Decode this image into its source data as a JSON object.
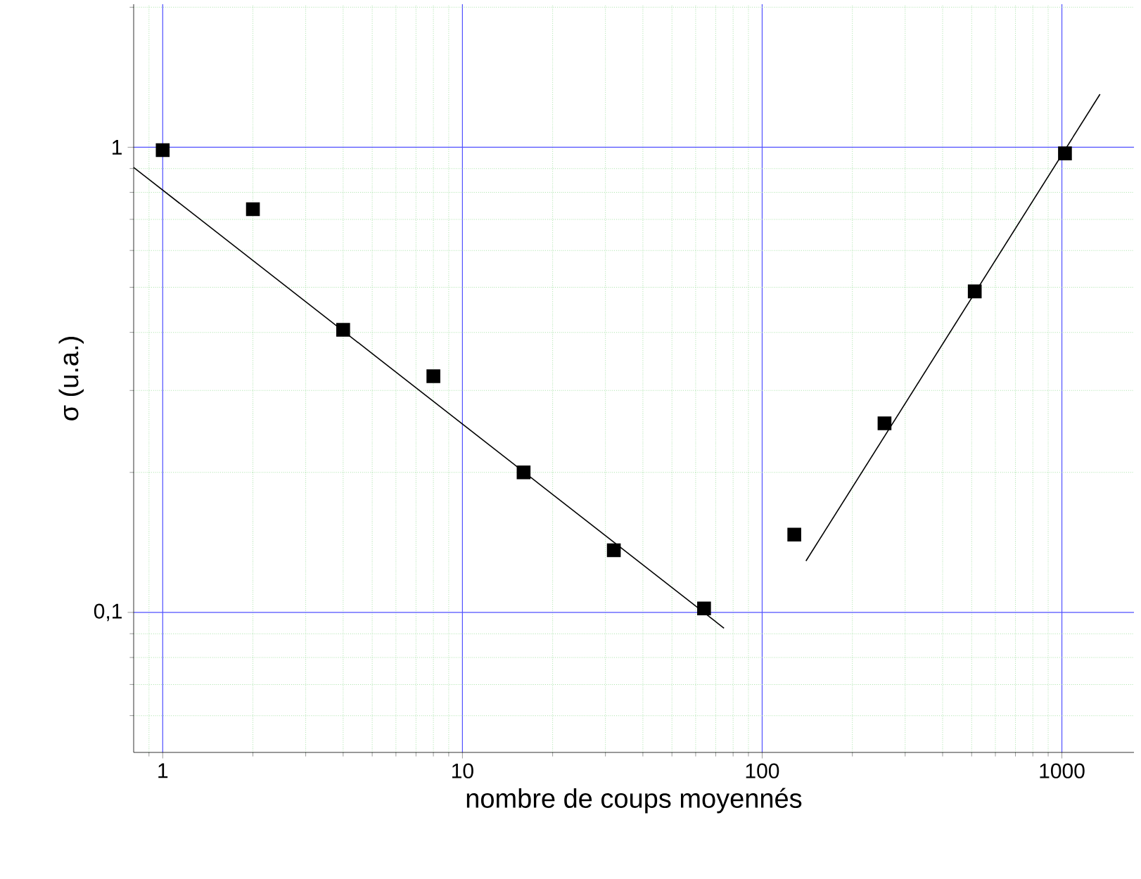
{
  "chart_data": {
    "type": "scatter",
    "xlabel": "nombre de coups moyennés",
    "ylabel": "σ (u.a.)",
    "log": "xy",
    "grid": true,
    "marker": "square",
    "xlim": [
      0.8,
      1740
    ],
    "ylim": [
      0.05,
      2.03
    ],
    "xticks": [
      {
        "value": 0.9,
        "label": null
      },
      1,
      {
        "value": 2,
        "label": null
      },
      {
        "value": 3,
        "label": null
      },
      {
        "value": 4,
        "label": null
      },
      {
        "value": 5,
        "label": null
      },
      {
        "value": 6,
        "label": null
      },
      {
        "value": 7,
        "label": null
      },
      {
        "value": 8,
        "label": null
      },
      {
        "value": 9,
        "label": null
      },
      10,
      {
        "value": 20,
        "label": null
      },
      {
        "value": 30,
        "label": null
      },
      {
        "value": 40,
        "label": null
      },
      {
        "value": 50,
        "label": null
      },
      {
        "value": 60,
        "label": null
      },
      {
        "value": 70,
        "label": null
      },
      {
        "value": 80,
        "label": null
      },
      {
        "value": 90,
        "label": null
      },
      100,
      {
        "value": 200,
        "label": null
      },
      {
        "value": 300,
        "label": null
      },
      {
        "value": 400,
        "label": null
      },
      {
        "value": 500,
        "label": null
      },
      {
        "value": 600,
        "label": null
      },
      {
        "value": 700,
        "label": null
      },
      {
        "value": 800,
        "label": null
      },
      {
        "value": 900,
        "label": null
      },
      1000
    ],
    "yticks": [
      {
        "value": 0.06,
        "label": null
      },
      {
        "value": 0.07,
        "label": null
      },
      {
        "value": 0.08,
        "label": null
      },
      {
        "value": 0.09,
        "label": null
      },
      {
        "value": 0.1,
        "label": "0,1"
      },
      {
        "value": 0.2,
        "label": null
      },
      {
        "value": 0.3,
        "label": null
      },
      {
        "value": 0.4,
        "label": null
      },
      {
        "value": 0.5,
        "label": null
      },
      {
        "value": 0.6,
        "label": null
      },
      {
        "value": 0.7,
        "label": null
      },
      {
        "value": 0.8,
        "label": null
      },
      {
        "value": 0.9,
        "label": null
      },
      1,
      {
        "value": 2,
        "label": null
      }
    ],
    "x": [
      1,
      2,
      4,
      8,
      16,
      32,
      64,
      128,
      256,
      512,
      1024
    ],
    "series": [
      {
        "color": "#000000",
        "values": [
          0.986,
          0.736,
          0.405,
          0.322,
          0.2,
          0.136,
          0.102,
          0.147,
          0.255,
          0.49,
          0.97
        ]
      },
      {
        "type": "line",
        "color": "#000000",
        "marker": "none",
        "x": [
          0.8,
          74.6
        ],
        "values": [
          0.905,
          0.0925
        ]
      },
      {
        "type": "line",
        "color": "#000000",
        "marker": "none",
        "x": [
          140,
          1340
        ],
        "values": [
          0.129,
          1.3
        ]
      }
    ]
  }
}
